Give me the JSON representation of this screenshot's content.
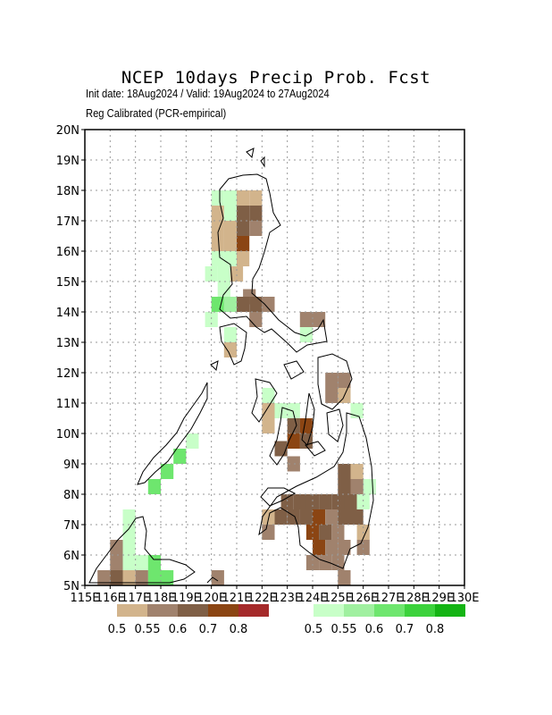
{
  "title": "NCEP 10days Precip Prob. Fcst",
  "subtitle_line1": "Init date: 18Aug2024 / Valid: 19Aug2024 to 27Aug2024",
  "subtitle_line2": "Reg Calibrated (PCR-empirical)",
  "lat_labels": [
    "5N",
    "6N",
    "7N",
    "8N",
    "9N",
    "10N",
    "11N",
    "12N",
    "13N",
    "14N",
    "15N",
    "16N",
    "17N",
    "18N",
    "19N",
    "20N"
  ],
  "lon_labels": [
    "115E",
    "116E",
    "117E",
    "118E",
    "119E",
    "120E",
    "121E",
    "122E",
    "123E",
    "124E",
    "125E",
    "126E",
    "127E",
    "128E",
    "129E",
    "130E"
  ],
  "dry_legend": {
    "labels": [
      "0.5",
      "0.55",
      "0.6",
      "0.7",
      "0.8"
    ],
    "colors": [
      "#d2b48c",
      "#a0826d",
      "#7f5f46",
      "#8b4513",
      "#a52a2a"
    ]
  },
  "wet_legend": {
    "labels": [
      "0.5",
      "0.55",
      "0.6",
      "0.7",
      "0.8"
    ],
    "colors": [
      "#c8ffc8",
      "#a0f0a0",
      "#6ee66e",
      "#3cd23c",
      "#14b414"
    ]
  },
  "grid_cells": [
    {
      "lon": 120.25,
      "lat": 17.75,
      "c": "w1"
    },
    {
      "lon": 120.75,
      "lat": 17.75,
      "c": "w1"
    },
    {
      "lon": 121.25,
      "lat": 17.75,
      "c": "d1"
    },
    {
      "lon": 121.75,
      "lat": 17.75,
      "c": "d1"
    },
    {
      "lon": 120.25,
      "lat": 17.25,
      "c": "d1"
    },
    {
      "lon": 120.75,
      "lat": 17.25,
      "c": "w1"
    },
    {
      "lon": 121.25,
      "lat": 17.25,
      "c": "d3"
    },
    {
      "lon": 121.75,
      "lat": 17.25,
      "c": "d3"
    },
    {
      "lon": 120.25,
      "lat": 16.75,
      "c": "d1"
    },
    {
      "lon": 120.75,
      "lat": 16.75,
      "c": "d1"
    },
    {
      "lon": 121.25,
      "lat": 16.75,
      "c": "d3"
    },
    {
      "lon": 121.75,
      "lat": 16.75,
      "c": "d2"
    },
    {
      "lon": 120.25,
      "lat": 16.25,
      "c": "d1"
    },
    {
      "lon": 120.75,
      "lat": 16.25,
      "c": "d1"
    },
    {
      "lon": 121.25,
      "lat": 16.25,
      "c": "d4"
    },
    {
      "lon": 120.25,
      "lat": 15.75,
      "c": "w1"
    },
    {
      "lon": 120.75,
      "lat": 15.75,
      "c": "w1"
    },
    {
      "lon": 121.25,
      "lat": 15.75,
      "c": "d1"
    },
    {
      "lon": 120.0,
      "lat": 15.25,
      "c": "w1"
    },
    {
      "lon": 120.5,
      "lat": 15.25,
      "c": "w1"
    },
    {
      "lon": 121.0,
      "lat": 15.25,
      "c": "d1"
    },
    {
      "lon": 120.5,
      "lat": 14.75,
      "c": "w1"
    },
    {
      "lon": 121.5,
      "lat": 14.5,
      "c": "d2"
    },
    {
      "lon": 120.25,
      "lat": 14.25,
      "c": "w3"
    },
    {
      "lon": 120.75,
      "lat": 14.25,
      "c": "w2"
    },
    {
      "lon": 121.25,
      "lat": 14.25,
      "c": "d3"
    },
    {
      "lon": 121.75,
      "lat": 14.25,
      "c": "d3"
    },
    {
      "lon": 122.25,
      "lat": 14.25,
      "c": "d2"
    },
    {
      "lon": 120.0,
      "lat": 13.75,
      "c": "w1"
    },
    {
      "lon": 121.75,
      "lat": 13.75,
      "c": "d2"
    },
    {
      "lon": 123.75,
      "lat": 13.75,
      "c": "d2"
    },
    {
      "lon": 124.25,
      "lat": 13.75,
      "c": "d2"
    },
    {
      "lon": 120.75,
      "lat": 13.25,
      "c": "w1"
    },
    {
      "lon": 123.75,
      "lat": 13.25,
      "c": "w1"
    },
    {
      "lon": 120.75,
      "lat": 12.75,
      "c": "d1"
    },
    {
      "lon": 124.75,
      "lat": 11.75,
      "c": "d2"
    },
    {
      "lon": 125.25,
      "lat": 11.75,
      "c": "d2"
    },
    {
      "lon": 122.25,
      "lat": 11.25,
      "c": "w1"
    },
    {
      "lon": 124.75,
      "lat": 11.25,
      "c": "d2"
    },
    {
      "lon": 125.25,
      "lat": 11.25,
      "c": "d1"
    },
    {
      "lon": 122.25,
      "lat": 10.75,
      "c": "d1"
    },
    {
      "lon": 122.75,
      "lat": 10.75,
      "c": "w1"
    },
    {
      "lon": 123.25,
      "lat": 10.75,
      "c": "w1"
    },
    {
      "lon": 125.75,
      "lat": 10.75,
      "c": "w1"
    },
    {
      "lon": 122.25,
      "lat": 10.25,
      "c": "d1"
    },
    {
      "lon": 123.25,
      "lat": 10.25,
      "c": "d3"
    },
    {
      "lon": 123.75,
      "lat": 10.25,
      "c": "d4"
    },
    {
      "lon": 123.25,
      "lat": 9.75,
      "c": "d4"
    },
    {
      "lon": 123.75,
      "lat": 9.75,
      "c": "d3"
    },
    {
      "lon": 122.75,
      "lat": 9.5,
      "c": "d3"
    },
    {
      "lon": 123.25,
      "lat": 9.0,
      "c": "d2"
    },
    {
      "lon": 125.25,
      "lat": 8.75,
      "c": "d3"
    },
    {
      "lon": 125.75,
      "lat": 8.75,
      "c": "d1"
    },
    {
      "lon": 126.25,
      "lat": 8.25,
      "c": "w1"
    },
    {
      "lon": 125.25,
      "lat": 8.25,
      "c": "d3"
    },
    {
      "lon": 125.75,
      "lat": 8.25,
      "c": "d2"
    },
    {
      "lon": 123.0,
      "lat": 7.75,
      "c": "d3"
    },
    {
      "lon": 123.5,
      "lat": 7.75,
      "c": "d3"
    },
    {
      "lon": 124.0,
      "lat": 7.75,
      "c": "d3"
    },
    {
      "lon": 124.5,
      "lat": 7.75,
      "c": "d3"
    },
    {
      "lon": 125.0,
      "lat": 7.75,
      "c": "d3"
    },
    {
      "lon": 125.5,
      "lat": 7.75,
      "c": "d3"
    },
    {
      "lon": 126.0,
      "lat": 7.75,
      "c": "w1"
    },
    {
      "lon": 122.25,
      "lat": 7.25,
      "c": "d1"
    },
    {
      "lon": 122.75,
      "lat": 7.25,
      "c": "d3"
    },
    {
      "lon": 123.25,
      "lat": 7.25,
      "c": "d3"
    },
    {
      "lon": 123.75,
      "lat": 7.25,
      "c": "d3"
    },
    {
      "lon": 124.25,
      "lat": 7.25,
      "c": "d4"
    },
    {
      "lon": 124.75,
      "lat": 7.25,
      "c": "d2"
    },
    {
      "lon": 125.25,
      "lat": 7.25,
      "c": "d3"
    },
    {
      "lon": 125.75,
      "lat": 7.25,
      "c": "d3"
    },
    {
      "lon": 122.25,
      "lat": 6.75,
      "c": "d2"
    },
    {
      "lon": 124.0,
      "lat": 6.75,
      "c": "d4"
    },
    {
      "lon": 124.5,
      "lat": 6.75,
      "c": "d3"
    },
    {
      "lon": 125.0,
      "lat": 6.75,
      "c": "d2"
    },
    {
      "lon": 126.0,
      "lat": 6.75,
      "c": "d1"
    },
    {
      "lon": 124.25,
      "lat": 6.25,
      "c": "d4"
    },
    {
      "lon": 124.75,
      "lat": 6.25,
      "c": "d2"
    },
    {
      "lon": 125.25,
      "lat": 6.25,
      "c": "d2"
    },
    {
      "lon": 126.0,
      "lat": 6.25,
      "c": "d2"
    },
    {
      "lon": 124.0,
      "lat": 5.75,
      "c": "d2"
    },
    {
      "lon": 124.5,
      "lat": 5.75,
      "c": "d2"
    },
    {
      "lon": 125.0,
      "lat": 5.75,
      "c": "d2"
    },
    {
      "lon": 125.25,
      "lat": 5.25,
      "c": "d2"
    },
    {
      "lon": 116.75,
      "lat": 7.25,
      "c": "w1"
    },
    {
      "lon": 116.75,
      "lat": 6.75,
      "c": "w1"
    },
    {
      "lon": 116.25,
      "lat": 6.25,
      "c": "d2"
    },
    {
      "lon": 116.75,
      "lat": 6.25,
      "c": "w1"
    },
    {
      "lon": 116.25,
      "lat": 5.75,
      "c": "d2"
    },
    {
      "lon": 116.75,
      "lat": 5.75,
      "c": "w1"
    },
    {
      "lon": 117.25,
      "lat": 5.75,
      "c": "w1"
    },
    {
      "lon": 117.75,
      "lat": 5.75,
      "c": "w3"
    },
    {
      "lon": 115.75,
      "lat": 5.25,
      "c": "d2"
    },
    {
      "lon": 116.25,
      "lat": 5.25,
      "c": "d3"
    },
    {
      "lon": 116.75,
      "lat": 5.25,
      "c": "d1"
    },
    {
      "lon": 117.25,
      "lat": 5.25,
      "c": "d2"
    },
    {
      "lon": 117.75,
      "lat": 5.25,
      "c": "w3"
    },
    {
      "lon": 118.25,
      "lat": 5.25,
      "c": "w3"
    },
    {
      "lon": 119.25,
      "lat": 9.75,
      "c": "w1"
    },
    {
      "lon": 118.75,
      "lat": 9.25,
      "c": "w3"
    },
    {
      "lon": 118.25,
      "lat": 8.75,
      "c": "w3"
    },
    {
      "lon": 117.75,
      "lat": 8.25,
      "c": "w3"
    },
    {
      "lon": 120.25,
      "lat": 5.25,
      "c": "d2"
    }
  ]
}
